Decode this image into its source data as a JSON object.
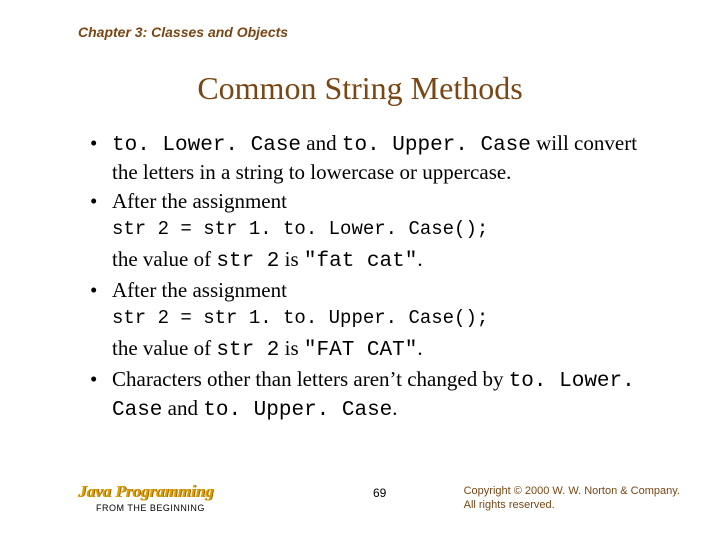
{
  "chapter_header": "Chapter 3: Classes and Objects",
  "title": "Common String Methods",
  "bullets": {
    "b1_pre": "to. Lower. Case",
    "b1_mid": " and ",
    "b1_code2": "to. Upper. Case",
    "b1_post": " will convert the letters in a string to lowercase or uppercase.",
    "b2": "After the assignment",
    "code1": "str 2 = str 1. to. Lower. Case();",
    "b2_res_pre": "the value of ",
    "b2_res_code": "str 2",
    "b2_res_mid": " is ",
    "b2_res_val": "\"fat cat\"",
    "b2_res_post": ".",
    "b3": "After the assignment",
    "code2": "str 2 = str 1. to. Upper. Case();",
    "b3_res_pre": "the value of ",
    "b3_res_code": "str 2",
    "b3_res_mid": " is ",
    "b3_res_val": "\"FAT CAT\"",
    "b3_res_post": ".",
    "b4_pre": "Characters other than letters aren’t changed by ",
    "b4_c1": "to. Lower. Case",
    "b4_mid": " and ",
    "b4_c2": "to. Upper. Case",
    "b4_post": "."
  },
  "footer": {
    "java": "Java Programming",
    "from": "FROM THE BEGINNING",
    "page": "69",
    "copy1": "Copyright © 2000 W. W. Norton & Company.",
    "copy2": "All rights reserved."
  },
  "colors": {
    "brown": "#794614",
    "gold": "#d9a300",
    "black": "#000000",
    "bg": "#ffffff"
  }
}
